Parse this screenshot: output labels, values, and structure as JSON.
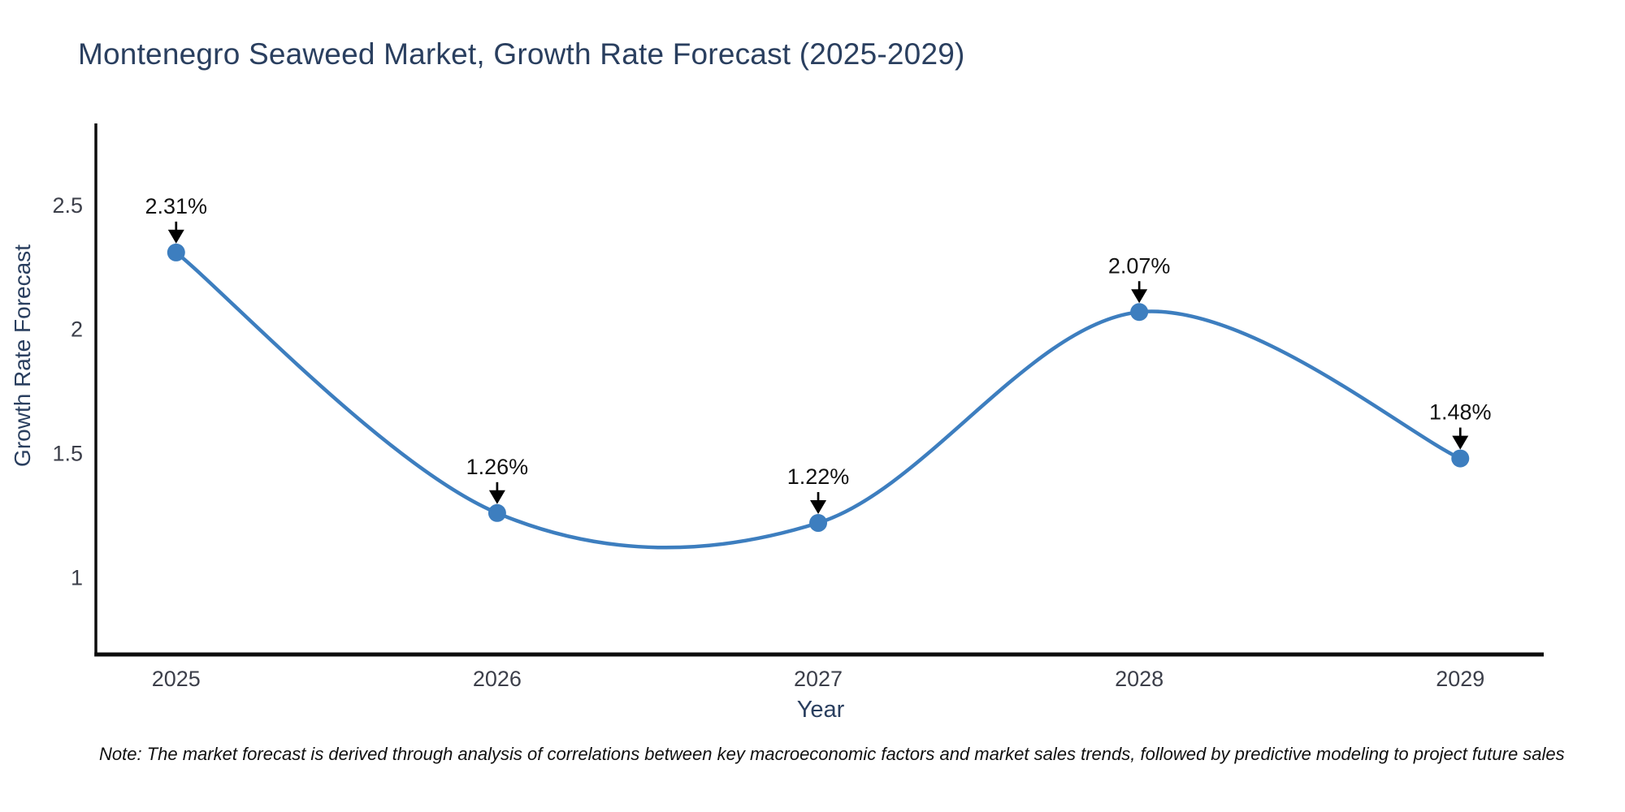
{
  "title": "Montenegro Seaweed Market, Growth Rate Forecast (2025-2029)",
  "note": "Note: The market forecast is derived through analysis of correlations between key macroeconomic factors and market sales trends, followed by predictive modeling to project future sales",
  "chart_data": {
    "type": "line",
    "line_shape": "spline",
    "title": "Montenegro Seaweed Market, Growth Rate Forecast (2025-2029)",
    "xlabel": "Year",
    "ylabel": "Growth Rate Forecast",
    "grid": false,
    "legend": "none",
    "xlim": [
      2024.75,
      2029.26
    ],
    "ylim": [
      0.69,
      2.83
    ],
    "points": [
      {
        "x": 2025,
        "y": 2.31,
        "label": "2.31%"
      },
      {
        "x": 2026,
        "y": 1.26,
        "label": "1.26%"
      },
      {
        "x": 2027,
        "y": 1.22,
        "label": "1.22%"
      },
      {
        "x": 2028,
        "y": 2.07,
        "label": "2.07%"
      },
      {
        "x": 2029,
        "y": 1.48,
        "label": "1.48%"
      }
    ],
    "x_ticks": [
      {
        "value": 2025,
        "label": "2025"
      },
      {
        "value": 2026,
        "label": "2026"
      },
      {
        "value": 2027,
        "label": "2027"
      },
      {
        "value": 2028,
        "label": "2028"
      },
      {
        "value": 2029,
        "label": "2029"
      }
    ],
    "y_ticks": [
      {
        "value": 1,
        "label": "1"
      },
      {
        "value": 1.5,
        "label": "1.5"
      },
      {
        "value": 2,
        "label": "2"
      },
      {
        "value": 2.5,
        "label": "2.5"
      }
    ],
    "colors": {
      "line": "#3d7ebf",
      "marker": "#3d7ebf",
      "axis": "#0d0d0d",
      "tick_text": "#3c3f4a",
      "annotation_text": "#111111",
      "title_text": "#2a3f5f"
    }
  }
}
